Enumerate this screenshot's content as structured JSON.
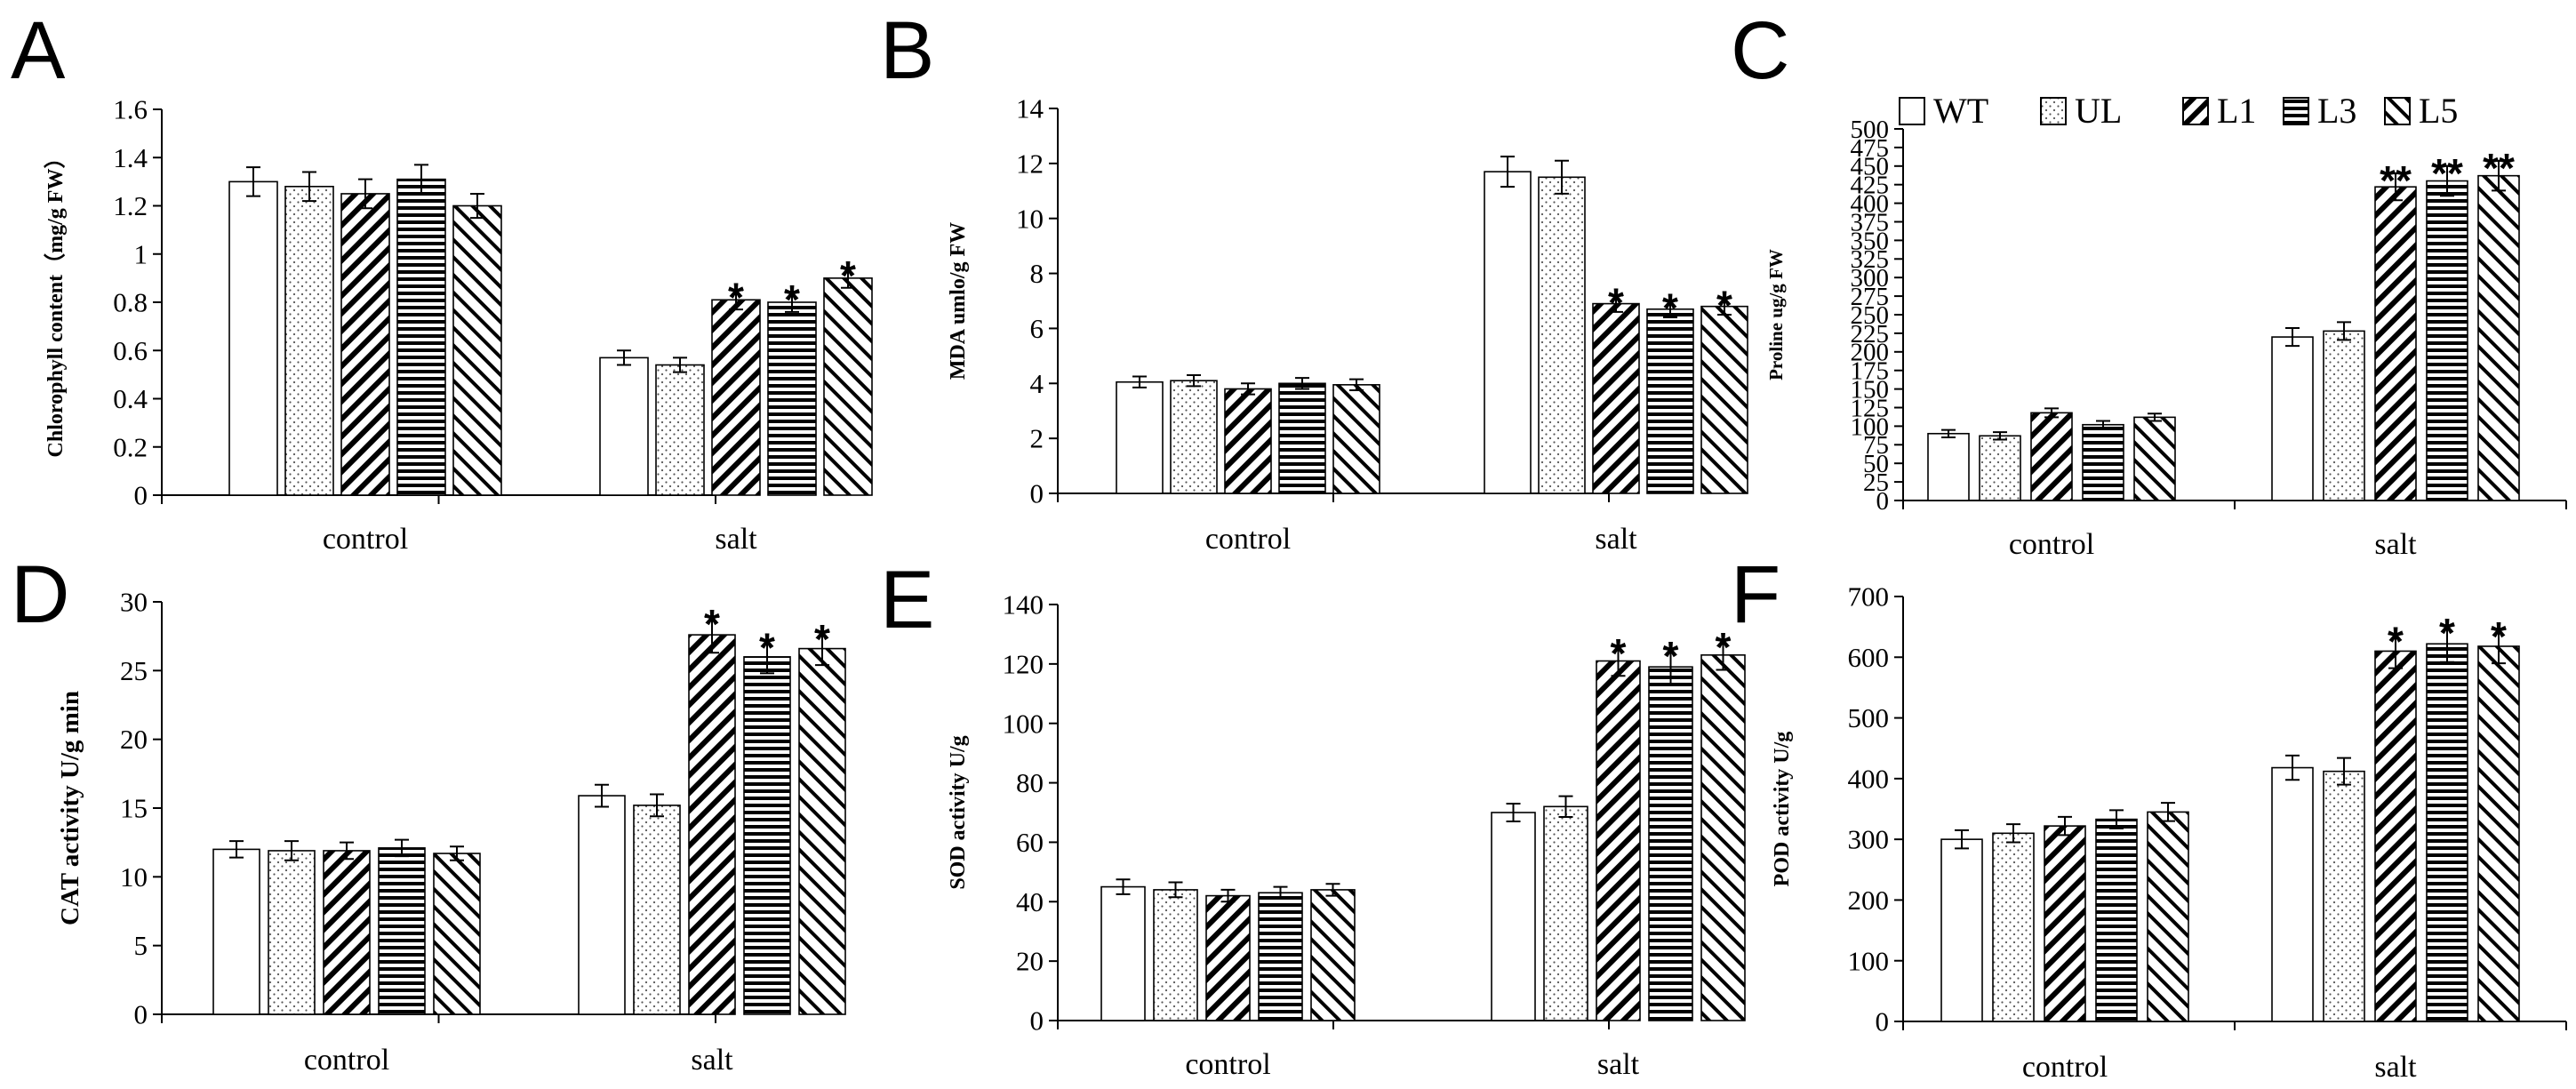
{
  "legend": {
    "entries": [
      {
        "name": "WT",
        "pattern": "blank"
      },
      {
        "name": "UL",
        "pattern": "dots"
      },
      {
        "name": "L1",
        "pattern": "diag-right"
      },
      {
        "name": "L3",
        "pattern": "horizontal"
      },
      {
        "name": "L5",
        "pattern": "diag-left"
      }
    ]
  },
  "chart_data": [
    {
      "panel": "A",
      "type": "bar",
      "ylabel": "Chlorophyll content（mg/g FW）",
      "ylim": [
        0,
        1.6
      ],
      "yticks": [
        "0",
        "0.2",
        "0.4",
        "0.6",
        "0.8",
        "1",
        "1.2",
        "1.4",
        "1.6"
      ],
      "categories": [
        "control",
        "salt"
      ],
      "series": [
        {
          "name": "WT",
          "values": [
            1.3,
            0.57
          ],
          "errors": [
            0.06,
            0.03
          ],
          "stars": [
            "",
            ""
          ]
        },
        {
          "name": "UL",
          "values": [
            1.28,
            0.54
          ],
          "errors": [
            0.06,
            0.03
          ],
          "stars": [
            "",
            ""
          ]
        },
        {
          "name": "L1",
          "values": [
            1.25,
            0.81
          ],
          "errors": [
            0.06,
            0.04
          ],
          "stars": [
            "",
            "*"
          ]
        },
        {
          "name": "L3",
          "values": [
            1.31,
            0.8
          ],
          "errors": [
            0.06,
            0.04
          ],
          "stars": [
            "",
            "*"
          ]
        },
        {
          "name": "L5",
          "values": [
            1.2,
            0.9
          ],
          "errors": [
            0.05,
            0.04
          ],
          "stars": [
            "",
            "*"
          ]
        }
      ]
    },
    {
      "panel": "B",
      "type": "bar",
      "ylabel": "MDA umlo/g  FW",
      "ylim": [
        0,
        14
      ],
      "yticks": [
        "0",
        "2",
        "4",
        "6",
        "8",
        "10",
        "12",
        "14"
      ],
      "categories": [
        "control",
        "salt"
      ],
      "series": [
        {
          "name": "WT",
          "values": [
            4.05,
            11.7
          ],
          "errors": [
            0.2,
            0.55
          ],
          "stars": [
            "",
            ""
          ]
        },
        {
          "name": "UL",
          "values": [
            4.1,
            11.5
          ],
          "errors": [
            0.2,
            0.6
          ],
          "stars": [
            "",
            ""
          ]
        },
        {
          "name": "L1",
          "values": [
            3.8,
            6.9
          ],
          "errors": [
            0.2,
            0.3
          ],
          "stars": [
            "",
            "*"
          ]
        },
        {
          "name": "L3",
          "values": [
            4.0,
            6.7
          ],
          "errors": [
            0.2,
            0.3
          ],
          "stars": [
            "",
            "*"
          ]
        },
        {
          "name": "L5",
          "values": [
            3.95,
            6.8
          ],
          "errors": [
            0.2,
            0.3
          ],
          "stars": [
            "",
            "*"
          ]
        }
      ]
    },
    {
      "panel": "C",
      "type": "bar",
      "ylabel": "Proline ug/g FW",
      "ylim": [
        0,
        500
      ],
      "yticks": [
        "0",
        "25",
        "50",
        "75",
        "100",
        "125",
        "150",
        "175",
        "200",
        "225",
        "250",
        "275",
        "300",
        "325",
        "350",
        "375",
        "400",
        "425",
        "450",
        "475",
        "500"
      ],
      "categories": [
        "control",
        "salt"
      ],
      "series": [
        {
          "name": "WT",
          "values": [
            90,
            220
          ],
          "errors": [
            5,
            12
          ],
          "stars": [
            "",
            ""
          ]
        },
        {
          "name": "UL",
          "values": [
            87,
            228
          ],
          "errors": [
            5,
            12
          ],
          "stars": [
            "",
            ""
          ]
        },
        {
          "name": "L1",
          "values": [
            118,
            422
          ],
          "errors": [
            6,
            18
          ],
          "stars": [
            "",
            "**"
          ]
        },
        {
          "name": "L3",
          "values": [
            102,
            430
          ],
          "errors": [
            5,
            20
          ],
          "stars": [
            "",
            "**"
          ]
        },
        {
          "name": "L5",
          "values": [
            112,
            437
          ],
          "errors": [
            5,
            20
          ],
          "stars": [
            "",
            "**"
          ]
        }
      ]
    },
    {
      "panel": "D",
      "type": "bar",
      "ylabel": "CAT activity U/g min",
      "ylim": [
        0,
        30
      ],
      "yticks": [
        "0",
        "5",
        "10",
        "15",
        "20",
        "25",
        "30"
      ],
      "categories": [
        "control",
        "salt"
      ],
      "series": [
        {
          "name": "WT",
          "values": [
            12.0,
            15.9
          ],
          "errors": [
            0.6,
            0.8
          ],
          "stars": [
            "",
            ""
          ]
        },
        {
          "name": "UL",
          "values": [
            11.9,
            15.2
          ],
          "errors": [
            0.7,
            0.8
          ],
          "stars": [
            "",
            ""
          ]
        },
        {
          "name": "L1",
          "values": [
            11.9,
            27.6
          ],
          "errors": [
            0.6,
            1.3
          ],
          "stars": [
            "",
            "*"
          ]
        },
        {
          "name": "L3",
          "values": [
            12.1,
            26.0
          ],
          "errors": [
            0.6,
            1.2
          ],
          "stars": [
            "",
            "*"
          ]
        },
        {
          "name": "L5",
          "values": [
            11.7,
            26.6
          ],
          "errors": [
            0.5,
            1.2
          ],
          "stars": [
            "",
            "*"
          ]
        }
      ]
    },
    {
      "panel": "E",
      "type": "bar",
      "ylabel": "SOD activity U/g",
      "ylim": [
        0,
        140
      ],
      "yticks": [
        "0",
        "20",
        "40",
        "60",
        "80",
        "100",
        "120",
        "140"
      ],
      "categories": [
        "control",
        "salt"
      ],
      "series": [
        {
          "name": "WT",
          "values": [
            45,
            70
          ],
          "errors": [
            2.5,
            3
          ],
          "stars": [
            "",
            ""
          ]
        },
        {
          "name": "UL",
          "values": [
            44,
            72
          ],
          "errors": [
            2.5,
            3.5
          ],
          "stars": [
            "",
            ""
          ]
        },
        {
          "name": "L1",
          "values": [
            42,
            121
          ],
          "errors": [
            2,
            5
          ],
          "stars": [
            "",
            "*"
          ]
        },
        {
          "name": "L3",
          "values": [
            43,
            119
          ],
          "errors": [
            2,
            6
          ],
          "stars": [
            "",
            "*"
          ]
        },
        {
          "name": "L5",
          "values": [
            44,
            123
          ],
          "errors": [
            2,
            5
          ],
          "stars": [
            "",
            "*"
          ]
        }
      ]
    },
    {
      "panel": "F",
      "type": "bar",
      "ylabel": "POD activity U/g",
      "ylim": [
        0,
        700
      ],
      "yticks": [
        "0",
        "100",
        "200",
        "300",
        "400",
        "500",
        "600",
        "700"
      ],
      "categories": [
        "control",
        "salt"
      ],
      "series": [
        {
          "name": "WT",
          "values": [
            300,
            418
          ],
          "errors": [
            15,
            20
          ],
          "stars": [
            "",
            ""
          ]
        },
        {
          "name": "UL",
          "values": [
            310,
            412
          ],
          "errors": [
            15,
            22
          ],
          "stars": [
            "",
            ""
          ]
        },
        {
          "name": "L1",
          "values": [
            322,
            610
          ],
          "errors": [
            15,
            28
          ],
          "stars": [
            "",
            "*"
          ]
        },
        {
          "name": "L3",
          "values": [
            333,
            622
          ],
          "errors": [
            15,
            30
          ],
          "stars": [
            "",
            "*"
          ]
        },
        {
          "name": "L5",
          "values": [
            345,
            618
          ],
          "errors": [
            15,
            28
          ],
          "stars": [
            "",
            "*"
          ]
        }
      ]
    }
  ]
}
